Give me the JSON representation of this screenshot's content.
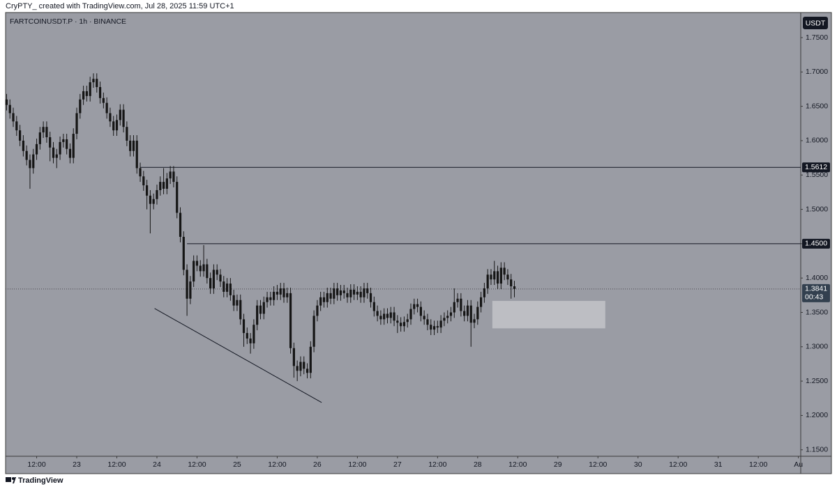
{
  "chart_data": {
    "type": "candlestick",
    "attribution": "CryPTY_ created with TradingView.com, Jul 28, 2025 11:59 UTC+1",
    "title": "FARTCOINUSDT.P · 1h · BINANCE",
    "currency": "USDT",
    "brand": "TradingView",
    "color": "#151515",
    "background": "#9a9ca4",
    "xlim": [
      -0.3,
      237.7
    ],
    "ylim": [
      1.1406,
      1.7865
    ],
    "xticks": [
      {
        "value": 9,
        "label": "12:00"
      },
      {
        "value": 21,
        "label": "23"
      },
      {
        "value": 33,
        "label": "12:00"
      },
      {
        "value": 45,
        "label": "24"
      },
      {
        "value": 57,
        "label": "12:00"
      },
      {
        "value": 69,
        "label": "25"
      },
      {
        "value": 81,
        "label": "12:00"
      },
      {
        "value": 93,
        "label": "26"
      },
      {
        "value": 105,
        "label": "12:00"
      },
      {
        "value": 117,
        "label": "27"
      },
      {
        "value": 129,
        "label": "12:00"
      },
      {
        "value": 141,
        "label": "28"
      },
      {
        "value": 153,
        "label": "12:00"
      },
      {
        "value": 165,
        "label": "29"
      },
      {
        "value": 177,
        "label": "12:00"
      },
      {
        "value": 189,
        "label": "30"
      },
      {
        "value": 201,
        "label": "12:00"
      },
      {
        "value": 213,
        "label": "31"
      },
      {
        "value": 225,
        "label": "12:00"
      },
      {
        "value": 237,
        "label": "Au"
      }
    ],
    "yticks": [
      {
        "value": 1.75,
        "label": "1.7500"
      },
      {
        "value": 1.7,
        "label": "1.7000"
      },
      {
        "value": 1.65,
        "label": "1.6500"
      },
      {
        "value": 1.6,
        "label": "1.6000"
      },
      {
        "value": 1.55,
        "label": "1.5500"
      },
      {
        "value": 1.5,
        "label": "1.5000"
      },
      {
        "value": 1.45,
        "label": "1.4500"
      },
      {
        "value": 1.4,
        "label": "1.4000"
      },
      {
        "value": 1.35,
        "label": "1.3500"
      },
      {
        "value": 1.3,
        "label": "1.3000"
      },
      {
        "value": 1.25,
        "label": "1.2500"
      },
      {
        "value": 1.2,
        "label": "1.2000"
      },
      {
        "value": 1.15,
        "label": "1.1500"
      }
    ],
    "candles": {
      "open": [
        1.66,
        1.652,
        1.64,
        1.628,
        1.615,
        1.6,
        1.585,
        1.572,
        1.56,
        1.58,
        1.595,
        1.612,
        1.62,
        1.605,
        1.59,
        1.575,
        1.58,
        1.598,
        1.602,
        1.588,
        1.575,
        1.61,
        1.64,
        1.66,
        1.672,
        1.665,
        1.685,
        1.69,
        1.678,
        1.662,
        1.655,
        1.64,
        1.628,
        1.615,
        1.63,
        1.645,
        1.62,
        1.6,
        1.585,
        1.6,
        1.56,
        1.548,
        1.535,
        1.52,
        1.508,
        1.515,
        1.528,
        1.54,
        1.53,
        1.545,
        1.555,
        1.54,
        1.495,
        1.46,
        1.412,
        1.37,
        1.395,
        1.425,
        1.418,
        1.41,
        1.42,
        1.4,
        1.385,
        1.412,
        1.405,
        1.395,
        1.38,
        1.392,
        1.375,
        1.36,
        1.368,
        1.34,
        1.32,
        1.312,
        1.305,
        1.332,
        1.36,
        1.348,
        1.365,
        1.372,
        1.368,
        1.38,
        1.376,
        1.385,
        1.372,
        1.378,
        1.298,
        1.272,
        1.265,
        1.278,
        1.268,
        1.262,
        1.3,
        1.345,
        1.36,
        1.372,
        1.365,
        1.378,
        1.37,
        1.385,
        1.375,
        1.382,
        1.378,
        1.372,
        1.383,
        1.376,
        1.38,
        1.372,
        1.385,
        1.378,
        1.365,
        1.352,
        1.345,
        1.34,
        1.348,
        1.342,
        1.35,
        1.338,
        1.335,
        1.33,
        1.336,
        1.34,
        1.355,
        1.362,
        1.358,
        1.345,
        1.34,
        1.332,
        1.325,
        1.33,
        1.328,
        1.338,
        1.342,
        1.345,
        1.35,
        1.365,
        1.37,
        1.352,
        1.345,
        1.36,
        1.335,
        1.34,
        1.358,
        1.372,
        1.385,
        1.405,
        1.398,
        1.41,
        1.392,
        1.415,
        1.405,
        1.398,
        1.388
      ],
      "high": [
        1.668,
        1.66,
        1.648,
        1.636,
        1.623,
        1.608,
        1.593,
        1.58,
        1.588,
        1.603,
        1.62,
        1.628,
        1.628,
        1.613,
        1.598,
        1.588,
        1.606,
        1.61,
        1.61,
        1.596,
        1.618,
        1.648,
        1.668,
        1.68,
        1.68,
        1.693,
        1.698,
        1.698,
        1.686,
        1.67,
        1.663,
        1.648,
        1.636,
        1.638,
        1.653,
        1.653,
        1.628,
        1.608,
        1.608,
        1.608,
        1.568,
        1.556,
        1.543,
        1.528,
        1.523,
        1.536,
        1.548,
        1.56,
        1.553,
        1.563,
        1.563,
        1.548,
        1.503,
        1.468,
        1.42,
        1.403,
        1.433,
        1.433,
        1.426,
        1.448,
        1.428,
        1.408,
        1.42,
        1.42,
        1.413,
        1.403,
        1.4,
        1.4,
        1.383,
        1.376,
        1.376,
        1.348,
        1.328,
        1.32,
        1.34,
        1.368,
        1.368,
        1.373,
        1.38,
        1.38,
        1.388,
        1.39,
        1.393,
        1.393,
        1.386,
        1.386,
        1.306,
        1.28,
        1.286,
        1.286,
        1.276,
        1.308,
        1.353,
        1.368,
        1.38,
        1.38,
        1.386,
        1.386,
        1.393,
        1.393,
        1.39,
        1.39,
        1.386,
        1.391,
        1.391,
        1.388,
        1.388,
        1.393,
        1.393,
        1.386,
        1.373,
        1.36,
        1.353,
        1.356,
        1.356,
        1.358,
        1.358,
        1.346,
        1.343,
        1.344,
        1.348,
        1.363,
        1.37,
        1.37,
        1.366,
        1.353,
        1.348,
        1.34,
        1.338,
        1.338,
        1.346,
        1.35,
        1.353,
        1.358,
        1.385,
        1.378,
        1.378,
        1.36,
        1.368,
        1.368,
        1.348,
        1.366,
        1.38,
        1.393,
        1.413,
        1.413,
        1.425,
        1.418,
        1.423,
        1.423,
        1.413,
        1.406,
        1.396
      ],
      "low": [
        1.644,
        1.632,
        1.62,
        1.607,
        1.592,
        1.577,
        1.564,
        1.53,
        1.552,
        1.572,
        1.587,
        1.604,
        1.597,
        1.57,
        1.567,
        1.56,
        1.572,
        1.59,
        1.58,
        1.567,
        1.567,
        1.602,
        1.632,
        1.652,
        1.657,
        1.657,
        1.677,
        1.67,
        1.654,
        1.647,
        1.632,
        1.62,
        1.607,
        1.607,
        1.622,
        1.612,
        1.592,
        1.577,
        1.577,
        1.552,
        1.54,
        1.527,
        1.5,
        1.465,
        1.5,
        1.507,
        1.52,
        1.522,
        1.522,
        1.537,
        1.532,
        1.487,
        1.452,
        1.404,
        1.345,
        1.362,
        1.387,
        1.41,
        1.402,
        1.402,
        1.392,
        1.377,
        1.377,
        1.397,
        1.387,
        1.372,
        1.372,
        1.367,
        1.352,
        1.352,
        1.332,
        1.3,
        1.304,
        1.29,
        1.297,
        1.324,
        1.34,
        1.34,
        1.357,
        1.36,
        1.36,
        1.368,
        1.368,
        1.364,
        1.364,
        1.29,
        1.255,
        1.25,
        1.257,
        1.26,
        1.254,
        1.254,
        1.292,
        1.337,
        1.352,
        1.357,
        1.357,
        1.362,
        1.362,
        1.367,
        1.367,
        1.37,
        1.364,
        1.364,
        1.368,
        1.368,
        1.364,
        1.364,
        1.37,
        1.357,
        1.344,
        1.337,
        1.332,
        1.332,
        1.334,
        1.334,
        1.33,
        1.32,
        1.322,
        1.322,
        1.328,
        1.332,
        1.347,
        1.35,
        1.337,
        1.332,
        1.324,
        1.317,
        1.317,
        1.32,
        1.32,
        1.33,
        1.334,
        1.337,
        1.342,
        1.357,
        1.344,
        1.337,
        1.337,
        1.3,
        1.327,
        1.332,
        1.35,
        1.364,
        1.377,
        1.39,
        1.39,
        1.384,
        1.384,
        1.397,
        1.39,
        1.37,
        1.372
      ],
      "close": [
        1.652,
        1.64,
        1.628,
        1.615,
        1.6,
        1.585,
        1.572,
        1.56,
        1.58,
        1.595,
        1.612,
        1.62,
        1.605,
        1.59,
        1.575,
        1.58,
        1.598,
        1.602,
        1.588,
        1.575,
        1.61,
        1.64,
        1.66,
        1.672,
        1.665,
        1.685,
        1.69,
        1.678,
        1.662,
        1.655,
        1.64,
        1.628,
        1.615,
        1.63,
        1.645,
        1.62,
        1.6,
        1.585,
        1.6,
        1.56,
        1.548,
        1.535,
        1.52,
        1.508,
        1.515,
        1.528,
        1.54,
        1.53,
        1.545,
        1.555,
        1.54,
        1.495,
        1.46,
        1.412,
        1.37,
        1.395,
        1.425,
        1.418,
        1.41,
        1.42,
        1.4,
        1.385,
        1.412,
        1.405,
        1.395,
        1.38,
        1.392,
        1.375,
        1.36,
        1.368,
        1.34,
        1.32,
        1.312,
        1.305,
        1.332,
        1.36,
        1.348,
        1.365,
        1.372,
        1.368,
        1.38,
        1.376,
        1.385,
        1.372,
        1.378,
        1.298,
        1.272,
        1.265,
        1.278,
        1.268,
        1.262,
        1.3,
        1.345,
        1.36,
        1.372,
        1.365,
        1.378,
        1.37,
        1.385,
        1.375,
        1.382,
        1.378,
        1.372,
        1.383,
        1.376,
        1.38,
        1.372,
        1.385,
        1.378,
        1.365,
        1.352,
        1.345,
        1.34,
        1.348,
        1.342,
        1.35,
        1.338,
        1.335,
        1.33,
        1.336,
        1.34,
        1.355,
        1.362,
        1.358,
        1.345,
        1.34,
        1.332,
        1.325,
        1.33,
        1.328,
        1.338,
        1.342,
        1.345,
        1.35,
        1.365,
        1.37,
        1.352,
        1.345,
        1.36,
        1.335,
        1.34,
        1.358,
        1.372,
        1.385,
        1.405,
        1.398,
        1.41,
        1.392,
        1.415,
        1.405,
        1.398,
        1.388,
        1.3841
      ]
    },
    "levels": [
      {
        "value": 1.5612,
        "label": "1.5612",
        "start": 40
      },
      {
        "value": 1.45,
        "label": "1.4500",
        "start": 54
      }
    ],
    "trendline": {
      "x": [
        44.3,
        94.3
      ],
      "y": [
        1.3557,
        1.2189
      ]
    },
    "zone": {
      "x": [
        145.4,
        179.2
      ],
      "y": [
        1.3268,
        1.3668
      ]
    },
    "last_price": {
      "value": 1.3841,
      "label": "1.3841",
      "countdown": "00:43"
    }
  }
}
